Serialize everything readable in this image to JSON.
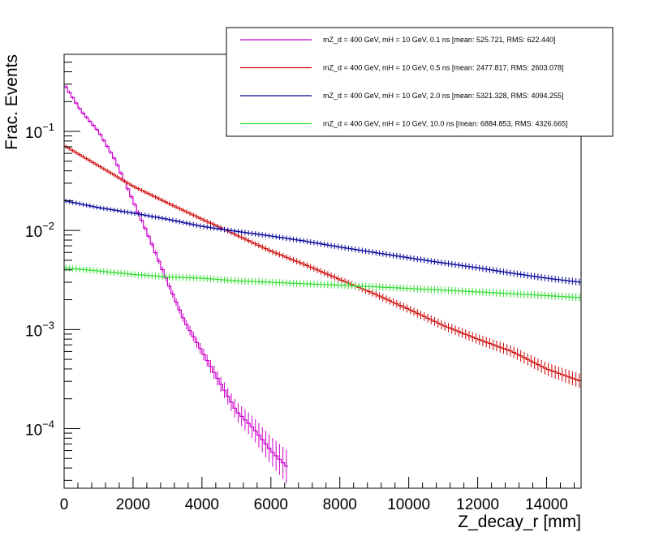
{
  "chart_data": {
    "type": "line",
    "title": "",
    "xlabel": "Z_decay_r [mm]",
    "ylabel": "Frac. Events",
    "xlim": [
      0,
      15000
    ],
    "ylim": [
      2.5e-05,
      0.6
    ],
    "yscale": "log",
    "grid": false,
    "legend_position": "top-right",
    "x_ticks": [
      {
        "value": 0,
        "label": "0"
      },
      {
        "value": 2000,
        "label": "2000"
      },
      {
        "value": 4000,
        "label": "4000"
      },
      {
        "value": 6000,
        "label": "6000"
      },
      {
        "value": 8000,
        "label": "8000"
      },
      {
        "value": 10000,
        "label": "10000"
      },
      {
        "value": 12000,
        "label": "12000"
      },
      {
        "value": 14000,
        "label": "14000"
      }
    ],
    "y_ticks": [
      {
        "value": 0.0001,
        "base": "10",
        "exp": "−4"
      },
      {
        "value": 0.001,
        "base": "10",
        "exp": "−3"
      },
      {
        "value": 0.01,
        "base": "10",
        "exp": "−2"
      },
      {
        "value": 0.1,
        "base": "10",
        "exp": "−1"
      }
    ],
    "series": [
      {
        "name": "mZ_d = 400 GeV, mH = 10 GeV, 0.1 ns [mean: 525.721, RMS: 622.440]",
        "color": "#cc00cc",
        "x": [
          0,
          500,
          1000,
          1500,
          2000,
          2500,
          3000,
          3500,
          4000,
          4500,
          5000,
          5500,
          6000,
          6500
        ],
        "y": [
          0.3,
          0.16,
          0.1,
          0.05,
          0.02,
          0.008,
          0.003,
          0.0012,
          0.0006,
          0.0003,
          0.00015,
          0.0001,
          6e-05,
          4e-05
        ]
      },
      {
        "name": "mZ_d = 400 GeV, mH = 10 GeV, 0.5 ns [mean: 2477.817, RMS: 2603.078]",
        "color": "#cc0000",
        "x": [
          0,
          1000,
          2000,
          3000,
          4000,
          5000,
          6000,
          7000,
          8000,
          9000,
          10000,
          11000,
          12000,
          13000,
          14000,
          15000
        ],
        "y": [
          0.072,
          0.045,
          0.028,
          0.019,
          0.013,
          0.009,
          0.0062,
          0.0045,
          0.0032,
          0.0023,
          0.0016,
          0.0011,
          0.0008,
          0.0006,
          0.0004,
          0.0003
        ]
      },
      {
        "name": "mZ_d = 400 GeV, mH = 10 GeV, 2.0 ns [mean: 5321.328, RMS: 4094.255]",
        "color": "#000099",
        "x": [
          0,
          1000,
          2000,
          3000,
          4000,
          5000,
          6000,
          7000,
          8000,
          9000,
          10000,
          11000,
          12000,
          13000,
          14000,
          15000
        ],
        "y": [
          0.02,
          0.017,
          0.015,
          0.013,
          0.011,
          0.0098,
          0.0088,
          0.0078,
          0.0068,
          0.006,
          0.0053,
          0.0047,
          0.0042,
          0.0037,
          0.0033,
          0.003
        ]
      },
      {
        "name": "mZ_d = 400 GeV, mH = 10 GeV, 10.0 ns [mean: 6884.853, RMS: 4326.665]",
        "color": "#33dd33",
        "x": [
          0,
          1000,
          2000,
          3000,
          4000,
          5000,
          6000,
          7000,
          8000,
          9000,
          10000,
          11000,
          12000,
          13000,
          14000,
          15000
        ],
        "y": [
          0.0042,
          0.0039,
          0.0036,
          0.0034,
          0.0033,
          0.0031,
          0.003,
          0.0029,
          0.0028,
          0.0027,
          0.0026,
          0.0025,
          0.0024,
          0.0023,
          0.0022,
          0.0021
        ]
      }
    ]
  }
}
